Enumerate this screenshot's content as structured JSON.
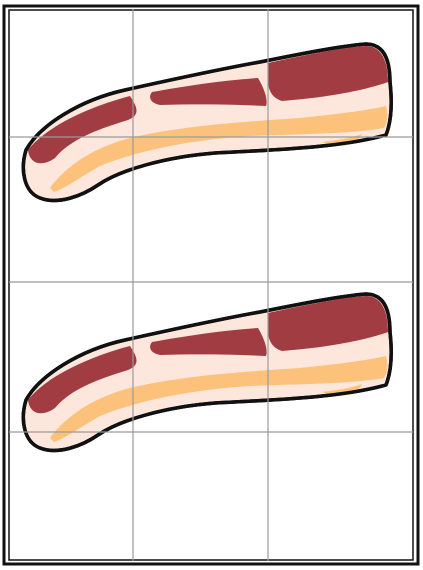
{
  "grid": {
    "rows": 4,
    "cols": 3
  },
  "pieces": [
    {
      "name": "bacon-strip-top",
      "icon": "bacon-icon"
    },
    {
      "name": "bacon-strip-bottom",
      "icon": "bacon-icon"
    }
  ],
  "colors": {
    "background": "#ffffff",
    "frame": "#111111",
    "grid_line": "#9a9a9a",
    "meat": "#a03c42",
    "fat": "#fde6dc",
    "fat_yellow": "#fcc27c",
    "outline": "#111111"
  }
}
